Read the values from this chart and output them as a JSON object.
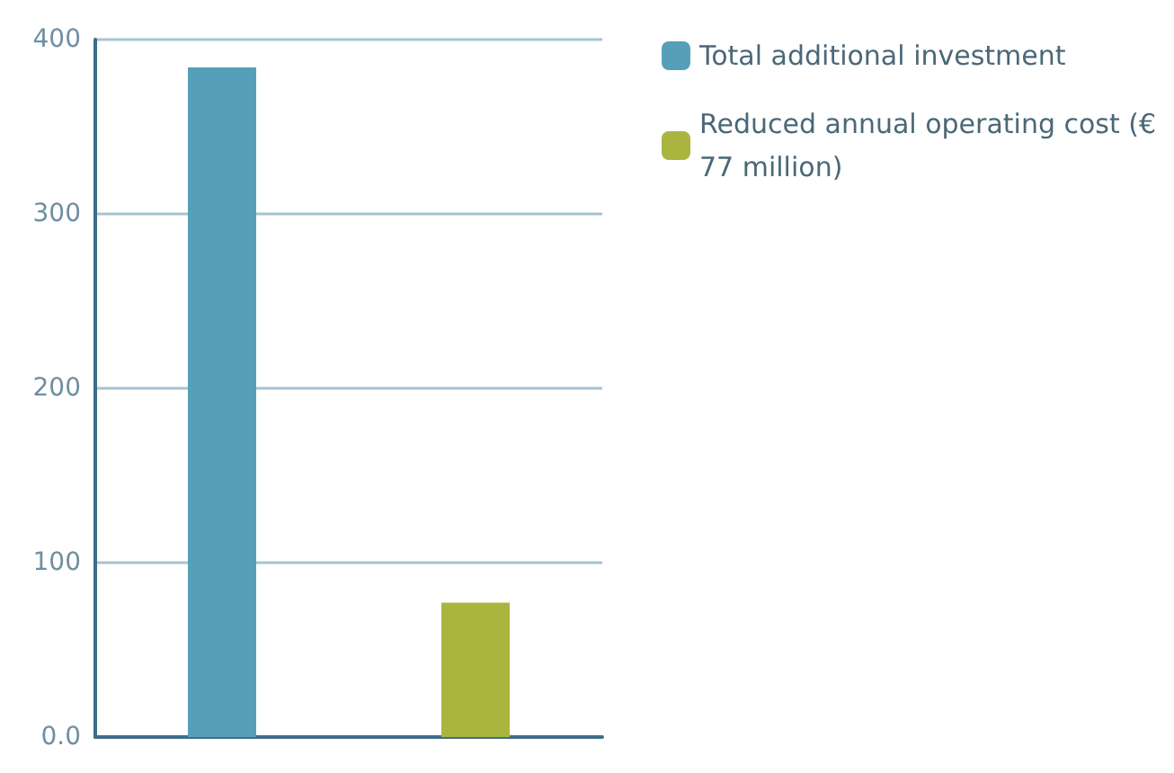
{
  "chart_data": {
    "type": "bar",
    "categories": [
      null,
      null
    ],
    "series": [
      {
        "name": "Total additional investment",
        "color": "#55a0b8",
        "values": [
          384,
          null
        ]
      },
      {
        "name": "Reduced annual operating cost (€ 77 million)",
        "color": "#a9b53f",
        "values": [
          null,
          77
        ]
      }
    ],
    "ylim": [
      0,
      400
    ],
    "yticks": [
      {
        "value": 0,
        "label": "0.0"
      },
      100,
      200,
      300,
      400
    ],
    "grid": "y",
    "legend": "top right"
  }
}
